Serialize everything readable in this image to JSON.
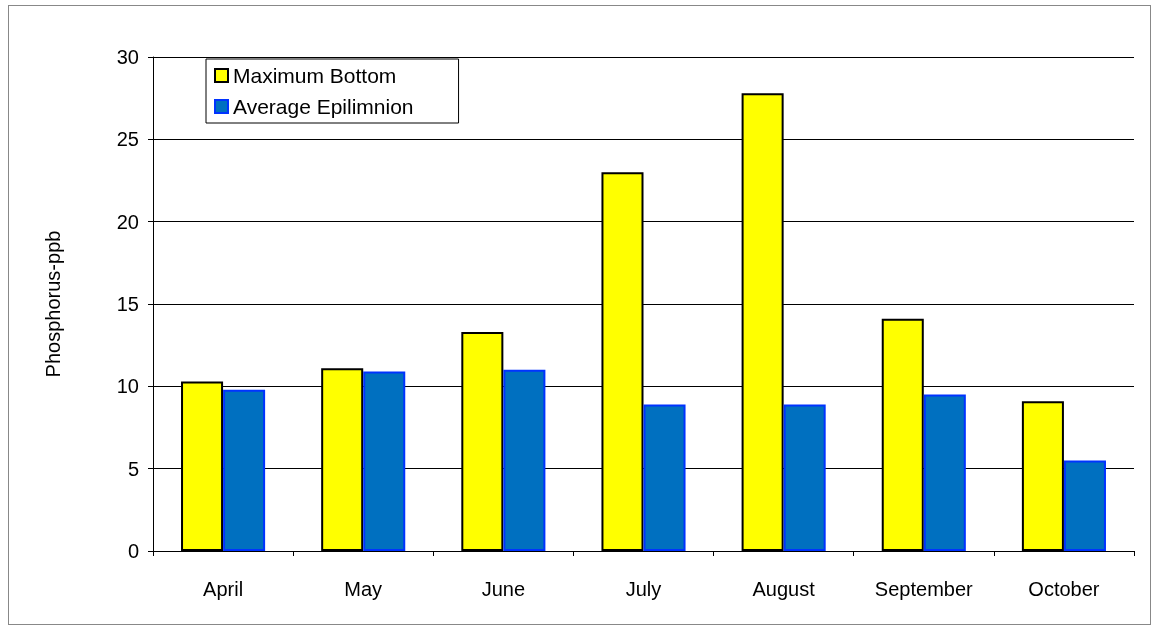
{
  "chart_data": {
    "type": "bar",
    "ylabel": "Phosphorus-ppb",
    "categories": [
      "April",
      "May",
      "June",
      "July",
      "August",
      "September",
      "October"
    ],
    "series": [
      {
        "name": "Maximum Bottom",
        "color": "#ffff00",
        "values": [
          10.3,
          11.1,
          13.3,
          23.0,
          27.8,
          14.1,
          9.1
        ]
      },
      {
        "name": "Average Epilimnion",
        "color": "#0070c0",
        "values": [
          9.8,
          10.9,
          11.0,
          8.9,
          8.9,
          9.5,
          5.5
        ]
      }
    ],
    "ylim": [
      0,
      30
    ],
    "yticks": [
      0,
      5,
      10,
      15,
      20,
      25,
      30
    ],
    "grid": "y",
    "legend": "top left"
  }
}
